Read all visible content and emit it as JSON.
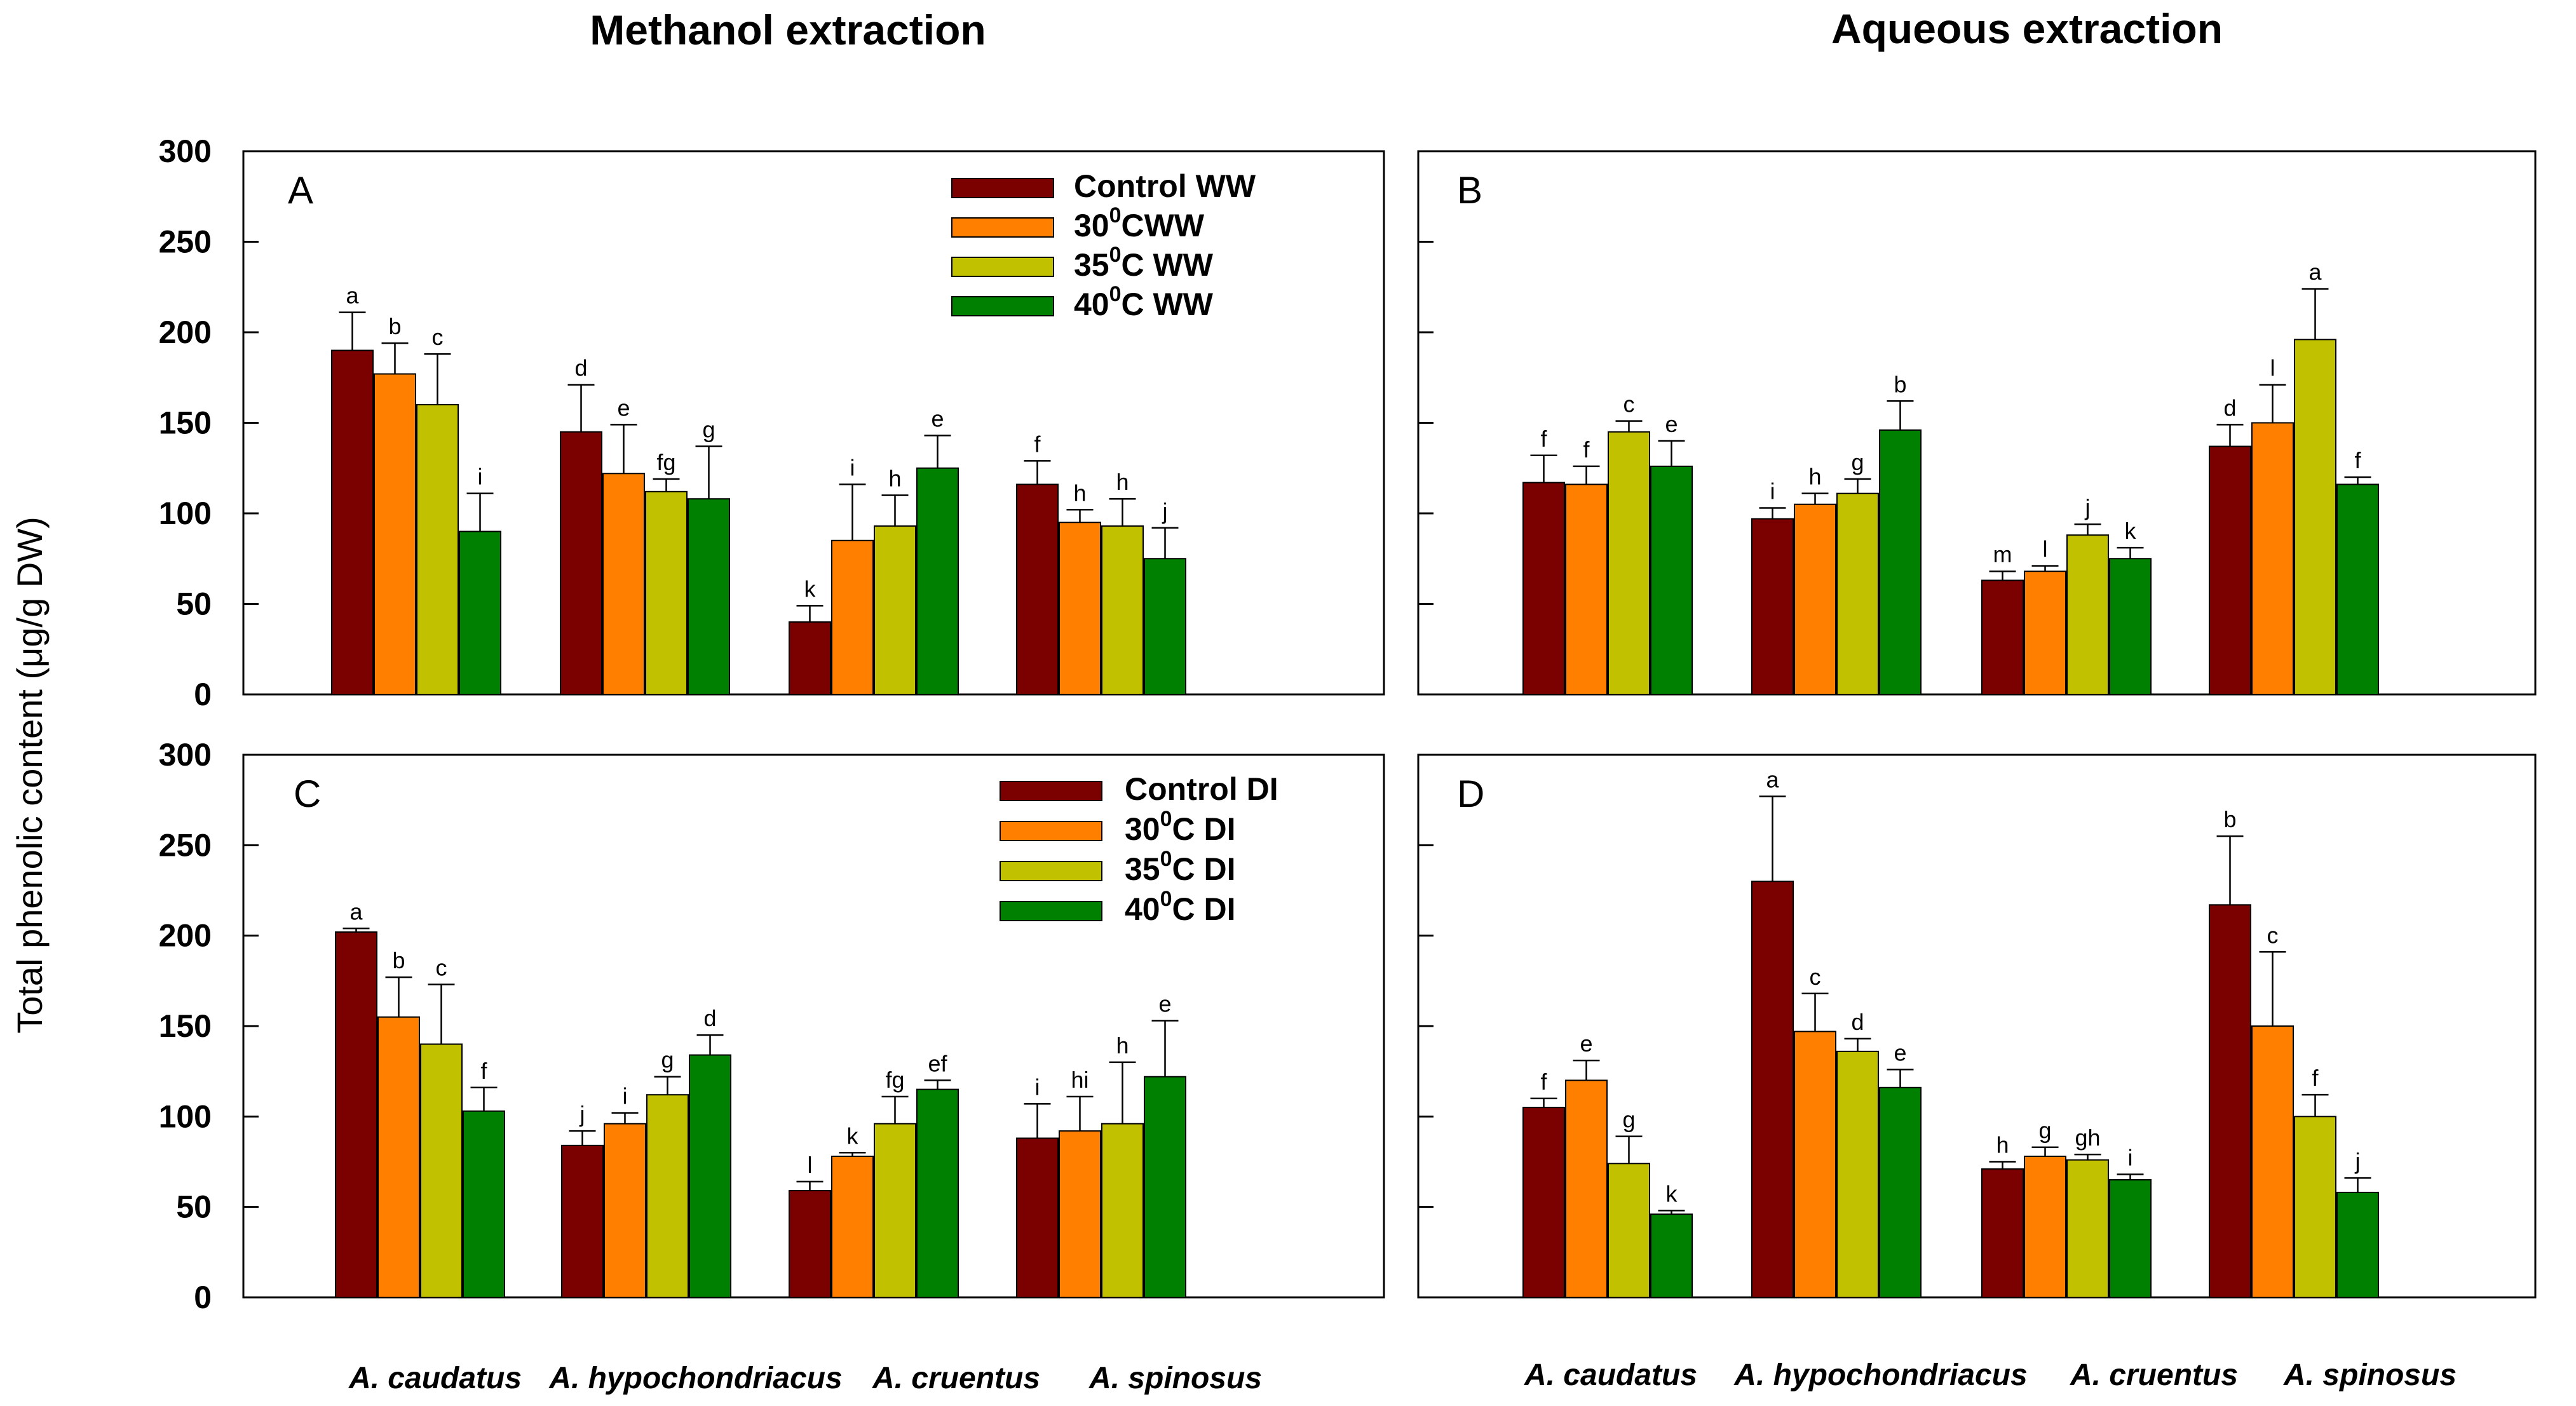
{
  "figure": {
    "column_titles": [
      "Methanol extraction",
      "Aqueous extraction"
    ],
    "ylabel": "Total phenolic content (μg/g DW)"
  },
  "chart_data": [
    {
      "id": "A",
      "type": "bar",
      "panel_label": "A",
      "title": "",
      "xlabel": "",
      "ylabel": "Total phenolic content (μg/g DW)",
      "ylim": [
        0,
        300
      ],
      "yticks": [
        0,
        50,
        100,
        150,
        200,
        250,
        300
      ],
      "categories": [
        "A. caudatus",
        "A. hypochondriacus",
        "A. cruentus",
        "A. spinosus"
      ],
      "legend": {
        "position": "top-right",
        "entries": [
          {
            "base": "Control WW"
          },
          {
            "base": "30",
            "sup": "0",
            "rest": "CWW"
          },
          {
            "base": "35",
            "sup": "0",
            "rest": "C WW"
          },
          {
            "base": "40",
            "sup": "0",
            "rest": "C WW"
          }
        ]
      },
      "series": [
        {
          "name": "Control WW",
          "color": "#7b0000",
          "values": [
            190,
            145,
            40,
            116
          ],
          "errors": [
            21,
            26,
            9,
            13
          ],
          "letters": [
            "a",
            "d",
            "k",
            "f"
          ]
        },
        {
          "name": "30°C WW",
          "color": "#ff8000",
          "values": [
            177,
            122,
            85,
            95
          ],
          "errors": [
            17,
            27,
            31,
            7
          ],
          "letters": [
            "b",
            "e",
            "i",
            "h"
          ]
        },
        {
          "name": "35°C WW",
          "color": "#c1c100",
          "values": [
            160,
            112,
            93,
            93
          ],
          "errors": [
            28,
            7,
            17,
            15
          ],
          "letters": [
            "c",
            "fg",
            "h",
            "h"
          ]
        },
        {
          "name": "40°C WW",
          "color": "#008000",
          "values": [
            90,
            108,
            125,
            75
          ],
          "errors": [
            21,
            29,
            18,
            17
          ],
          "letters": [
            "i",
            "g",
            "e",
            "j"
          ]
        }
      ]
    },
    {
      "id": "B",
      "type": "bar",
      "panel_label": "B",
      "title": "",
      "xlabel": "",
      "ylabel": "",
      "ylim": [
        0,
        300
      ],
      "yticks": [
        0,
        50,
        100,
        150,
        200,
        250,
        300
      ],
      "categories": [
        "A. caudatus",
        "A. hypochondriacus",
        "A. cruentus",
        "A. spinosus"
      ],
      "series": [
        {
          "name": "Control WW",
          "color": "#7b0000",
          "values": [
            117,
            97,
            63,
            137
          ],
          "errors": [
            15,
            6,
            5,
            12
          ],
          "letters": [
            "f",
            "i",
            "m",
            "d"
          ]
        },
        {
          "name": "30°C WW",
          "color": "#ff8000",
          "values": [
            116,
            105,
            68,
            150
          ],
          "errors": [
            10,
            6,
            3,
            21
          ],
          "letters": [
            "f",
            "h",
            "l",
            "l"
          ]
        },
        {
          "name": "35°C WW",
          "color": "#c1c100",
          "values": [
            145,
            111,
            88,
            196
          ],
          "errors": [
            6,
            8,
            6,
            28
          ],
          "letters": [
            "c",
            "g",
            "j",
            "a"
          ]
        },
        {
          "name": "40°C WW",
          "color": "#008000",
          "values": [
            126,
            146,
            75,
            116
          ],
          "errors": [
            14,
            16,
            6,
            4
          ],
          "letters": [
            "e",
            "b",
            "k",
            "f"
          ]
        }
      ]
    },
    {
      "id": "C",
      "type": "bar",
      "panel_label": "C",
      "title": "",
      "xlabel": "",
      "ylabel": "Total phenolic content (μg/g DW)",
      "ylim": [
        0,
        300
      ],
      "yticks": [
        0,
        50,
        100,
        150,
        200,
        250,
        300
      ],
      "categories": [
        "A. caudatus",
        "A. hypochondriacus",
        "A. cruentus",
        "A. spinosus"
      ],
      "legend": {
        "position": "top-right",
        "entries": [
          {
            "base": "Control DI"
          },
          {
            "base": "30",
            "sup": "0",
            "rest": "C DI"
          },
          {
            "base": "35",
            "sup": "0",
            "rest": "C DI"
          },
          {
            "base": "40",
            "sup": "0",
            "rest": "C DI"
          }
        ]
      },
      "series": [
        {
          "name": "Control DI",
          "color": "#7b0000",
          "values": [
            202,
            84,
            59,
            88
          ],
          "errors": [
            2,
            8,
            5,
            19
          ],
          "letters": [
            "a",
            "j",
            "l",
            "i"
          ]
        },
        {
          "name": "30°C DI",
          "color": "#ff8000",
          "values": [
            155,
            96,
            78,
            92
          ],
          "errors": [
            22,
            6,
            2,
            19
          ],
          "letters": [
            "b",
            "i",
            "k",
            "hi"
          ]
        },
        {
          "name": "35°C DI",
          "color": "#c1c100",
          "values": [
            140,
            112,
            96,
            96
          ],
          "errors": [
            33,
            10,
            15,
            34
          ],
          "letters": [
            "c",
            "g",
            "fg",
            "h"
          ]
        },
        {
          "name": "40°C DI",
          "color": "#008000",
          "values": [
            103,
            134,
            115,
            122
          ],
          "errors": [
            13,
            11,
            5,
            31
          ],
          "letters": [
            "f",
            "d",
            "ef",
            "e"
          ]
        }
      ]
    },
    {
      "id": "D",
      "type": "bar",
      "panel_label": "D",
      "title": "",
      "xlabel": "",
      "ylabel": "",
      "ylim": [
        0,
        300
      ],
      "yticks": [
        0,
        50,
        100,
        150,
        200,
        250,
        300
      ],
      "categories": [
        "A. caudatus",
        "A. hypochondriacus",
        "A. cruentus",
        "A. spinosus"
      ],
      "series": [
        {
          "name": "Control DI",
          "color": "#7b0000",
          "values": [
            105,
            230,
            71,
            217
          ],
          "errors": [
            5,
            47,
            4,
            38
          ],
          "letters": [
            "f",
            "a",
            "h",
            "b"
          ]
        },
        {
          "name": "30°C DI",
          "color": "#ff8000",
          "values": [
            120,
            147,
            78,
            150
          ],
          "errors": [
            11,
            21,
            5,
            41
          ],
          "letters": [
            "e",
            "c",
            "g",
            "c"
          ]
        },
        {
          "name": "35°C DI",
          "color": "#c1c100",
          "values": [
            74,
            136,
            76,
            100
          ],
          "errors": [
            15,
            7,
            3,
            12
          ],
          "letters": [
            "g",
            "d",
            "gh",
            "f"
          ]
        },
        {
          "name": "40°C DI",
          "color": "#008000",
          "values": [
            46,
            116,
            65,
            58
          ],
          "errors": [
            2,
            10,
            3,
            8
          ],
          "letters": [
            "k",
            "e",
            "i",
            "j"
          ]
        }
      ]
    }
  ]
}
